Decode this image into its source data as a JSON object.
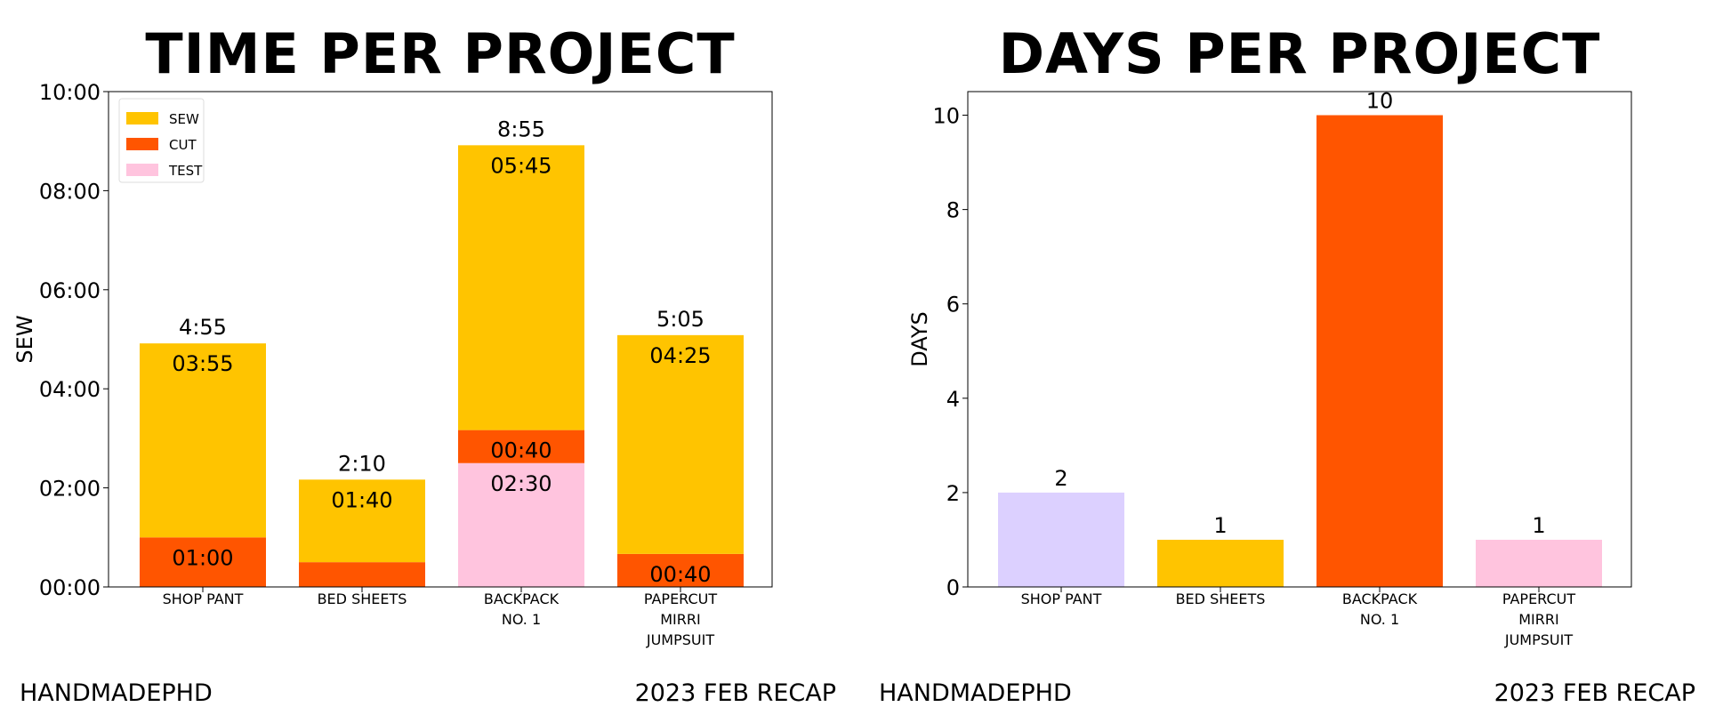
{
  "footer": {
    "left_text": "HANDMADEPHD",
    "right_text": "2023 FEB RECAP"
  },
  "colors": {
    "sew": "#FFC400",
    "cut": "#FF5500",
    "test": "#FFC4DE",
    "lavender": "#DCD0FF"
  },
  "chart_data": [
    {
      "type": "bar",
      "stacked": true,
      "title": "TIME PER PROJECT",
      "ylabel": "SEW",
      "xlabel": "",
      "ylim": [
        0,
        600
      ],
      "y_unit": "minutes",
      "yticks": [
        {
          "value": 0,
          "label": "00:00"
        },
        {
          "value": 120,
          "label": "02:00"
        },
        {
          "value": 240,
          "label": "04:00"
        },
        {
          "value": 360,
          "label": "06:00"
        },
        {
          "value": 480,
          "label": "08:00"
        },
        {
          "value": 600,
          "label": "10:00"
        }
      ],
      "grid": false,
      "legend_position": "top-left",
      "categories": [
        [
          "SHOP PANT"
        ],
        [
          "BED SHEETS"
        ],
        [
          "BACKPACK",
          "NO. 1"
        ],
        [
          "PAPERCUT",
          "MIRRI",
          "JUMPSUIT"
        ]
      ],
      "series": [
        {
          "name": "TEST",
          "color": "#FFC4DE",
          "values": [
            0,
            0,
            150,
            0
          ],
          "labels": [
            "",
            "",
            "02:30",
            ""
          ]
        },
        {
          "name": "CUT",
          "color": "#FF5500",
          "values": [
            60,
            30,
            40,
            40
          ],
          "labels": [
            "01:00",
            "",
            "00:40",
            "00:40"
          ]
        },
        {
          "name": "SEW",
          "color": "#FFC400",
          "values": [
            235,
            100,
            345,
            265
          ],
          "labels": [
            "03:55",
            "01:40",
            "05:45",
            "04:25"
          ]
        }
      ],
      "legend": [
        {
          "name": "SEW",
          "color": "#FFC400"
        },
        {
          "name": "CUT",
          "color": "#FF5500"
        },
        {
          "name": "TEST",
          "color": "#FFC4DE"
        }
      ],
      "totals": [
        "4:55",
        "2:10",
        "8:55",
        "5:05"
      ]
    },
    {
      "type": "bar",
      "title": "DAYS PER PROJECT",
      "ylabel": "DAYS",
      "xlabel": "",
      "ylim": [
        0,
        10.5
      ],
      "yticks": [
        {
          "value": 0,
          "label": "0"
        },
        {
          "value": 2,
          "label": "2"
        },
        {
          "value": 4,
          "label": "4"
        },
        {
          "value": 6,
          "label": "6"
        },
        {
          "value": 8,
          "label": "8"
        },
        {
          "value": 10,
          "label": "10"
        }
      ],
      "grid": false,
      "categories": [
        [
          "SHOP PANT"
        ],
        [
          "BED SHEETS"
        ],
        [
          "BACKPACK",
          "NO. 1"
        ],
        [
          "PAPERCUT",
          "MIRRI",
          "JUMPSUIT"
        ]
      ],
      "values": [
        2,
        1,
        10,
        1
      ],
      "value_labels": [
        "2",
        "1",
        "10",
        "1"
      ],
      "bar_colors": [
        "#DCD0FF",
        "#FFC400",
        "#FF5500",
        "#FFC4DE"
      ]
    }
  ]
}
